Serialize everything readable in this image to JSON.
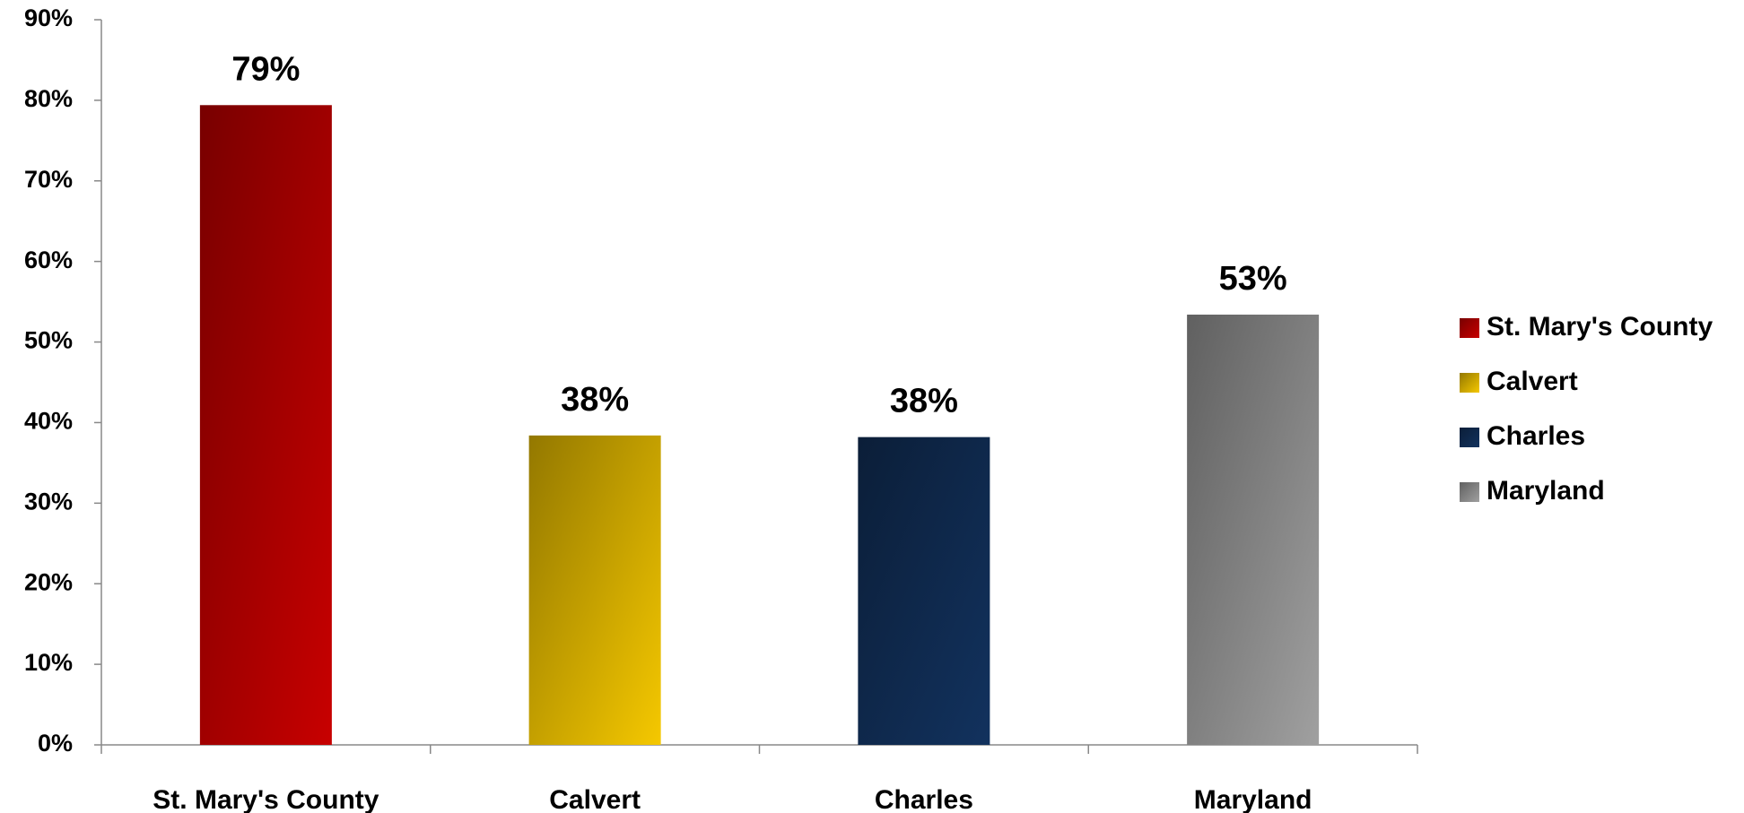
{
  "chart_data": {
    "type": "bar",
    "categories": [
      "St. Mary's County",
      "Calvert",
      "Charles",
      "Maryland"
    ],
    "values": [
      79.4,
      38.4,
      38.2,
      53.4
    ],
    "value_labels": [
      "79%",
      "38%",
      "38%",
      "53%"
    ],
    "colors": [
      "#c80000",
      "#f5c800",
      "#12325e",
      "#a0a0a0"
    ],
    "ylim": [
      0,
      90
    ],
    "yticks": [
      {
        "value": 0,
        "label": "0%"
      },
      {
        "value": 10,
        "label": "10%"
      },
      {
        "value": 20,
        "label": "20%"
      },
      {
        "value": 30,
        "label": "30%"
      },
      {
        "value": 40,
        "label": "40%"
      },
      {
        "value": 50,
        "label": "50%"
      },
      {
        "value": 60,
        "label": "60%"
      },
      {
        "value": 70,
        "label": "70%"
      },
      {
        "value": 80,
        "label": "80%"
      },
      {
        "value": 90,
        "label": "90%"
      }
    ],
    "grid": false,
    "legend": "right"
  }
}
